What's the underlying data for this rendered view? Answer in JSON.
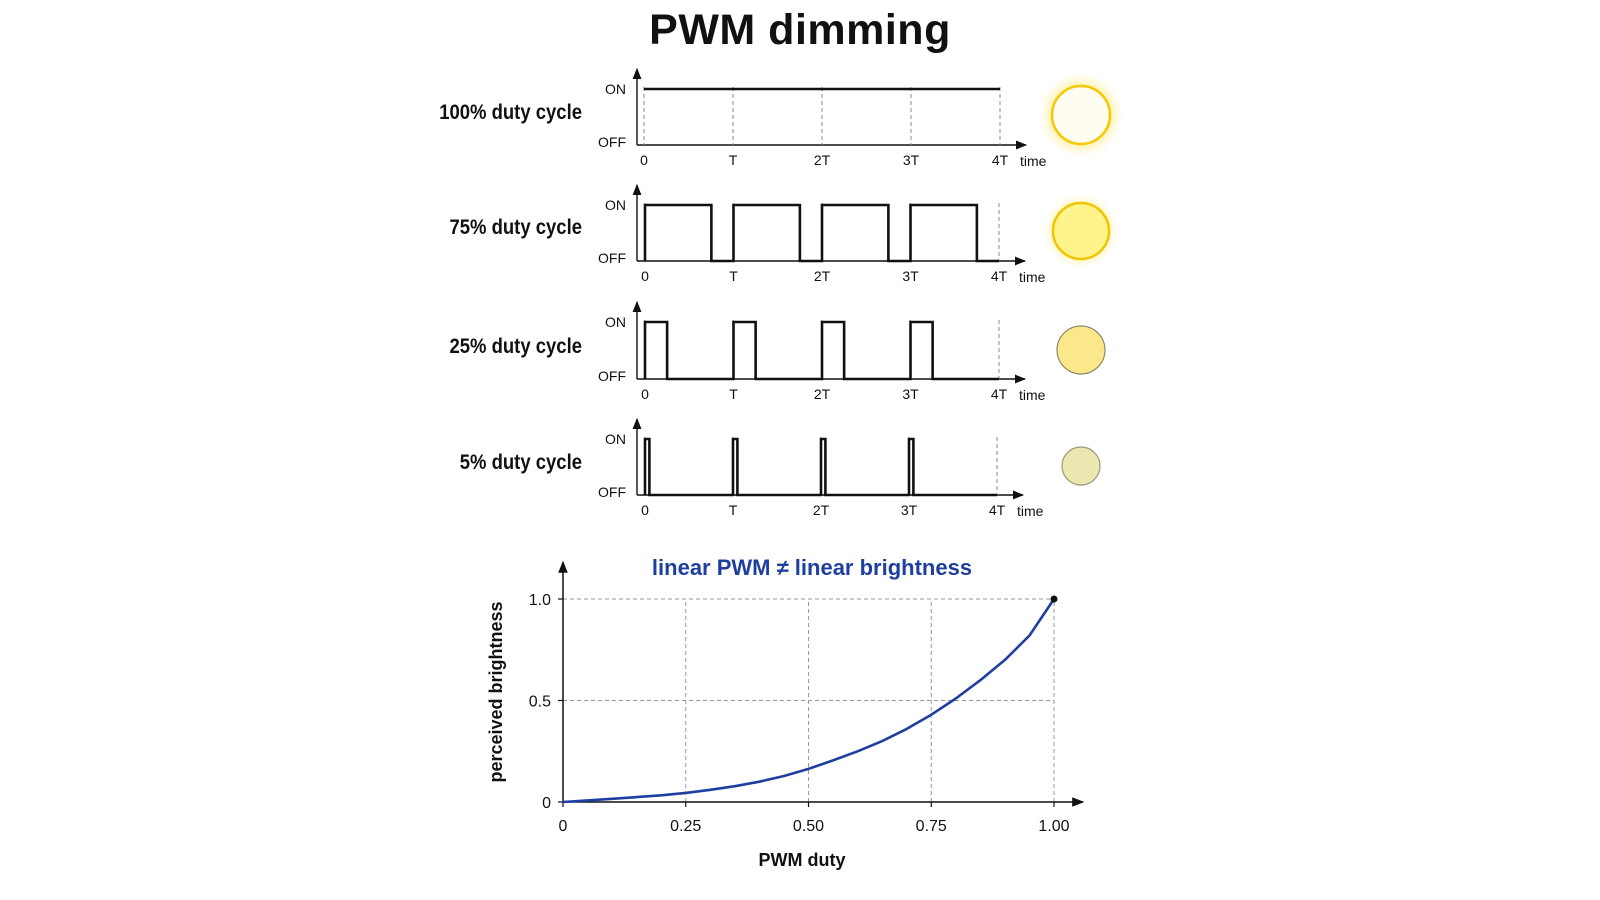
{
  "title": "PWM dimming",
  "waveforms": {
    "state_labels": {
      "on": "ON",
      "off": "OFF"
    },
    "time_label": "time",
    "time_ticks": [
      "0",
      "T",
      "2T",
      "3T",
      "4T"
    ],
    "periods": 4,
    "rows": [
      {
        "label": "100% duty cycle",
        "duty": 1.0,
        "brightness_color": "#fffdf2"
      },
      {
        "label": "75% duty cycle",
        "duty": 0.75,
        "brightness_color": "#fff38c"
      },
      {
        "label": "25% duty cycle",
        "duty": 0.25,
        "brightness_color": "#fbe88a"
      },
      {
        "label": "5% duty cycle",
        "duty": 0.05,
        "brightness_color": "#ece6b0"
      }
    ]
  },
  "chart_data": {
    "type": "line",
    "title": "linear PWM ≠ linear brightness",
    "xlabel": "PWM duty",
    "ylabel": "perceived brightness",
    "xlim": [
      0,
      1
    ],
    "ylim": [
      0,
      1
    ],
    "x_ticks": [
      "0",
      "0.25",
      "0.50",
      "0.75",
      "1.00"
    ],
    "y_ticks": [
      "0",
      "0.5",
      "1.0"
    ],
    "grid": true,
    "series": [
      {
        "color": "#1e3fa0",
        "x": [
          0,
          0.05,
          0.1,
          0.15,
          0.2,
          0.25,
          0.3,
          0.35,
          0.4,
          0.45,
          0.5,
          0.55,
          0.6,
          0.65,
          0.7,
          0.75,
          0.8,
          0.85,
          0.9,
          0.95,
          1.0
        ],
        "y": [
          0.0,
          0.008,
          0.016,
          0.024,
          0.033,
          0.045,
          0.06,
          0.078,
          0.1,
          0.128,
          0.163,
          0.205,
          0.25,
          0.3,
          0.36,
          0.43,
          0.51,
          0.6,
          0.7,
          0.82,
          1.0
        ]
      }
    ],
    "endpoint_marker": {
      "x": 1.0,
      "y": 1.0
    }
  }
}
